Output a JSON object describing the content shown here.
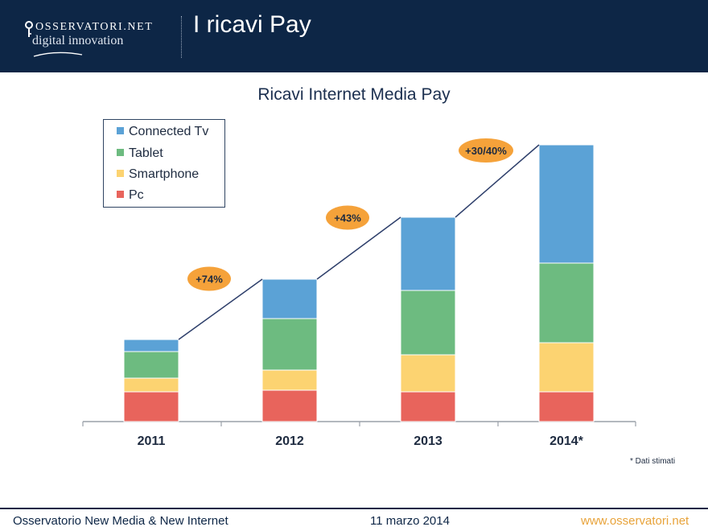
{
  "header": {
    "logo_top": "OSSERVATORI.NET",
    "logo_bottom": "digital innovation",
    "title": "I ricavi Pay"
  },
  "chart_data": {
    "type": "bar",
    "stacked": true,
    "title": "Ricavi Internet Media Pay",
    "categories": [
      "2011",
      "2012",
      "2013",
      "2014*"
    ],
    "series": [
      {
        "name": "Pc",
        "color": "#e8645c",
        "values": [
          37,
          39,
          37,
          37
        ]
      },
      {
        "name": "Smartphone",
        "color": "#fcd371",
        "values": [
          17,
          25,
          46,
          61
        ]
      },
      {
        "name": "Tablet",
        "color": "#6dbb80",
        "values": [
          33,
          64,
          80,
          99
        ]
      },
      {
        "name": "Connected Tv",
        "color": "#5ba2d6",
        "values": [
          15,
          49,
          91,
          147
        ]
      }
    ],
    "legend_order": [
      "Connected Tv",
      "Tablet",
      "Smartphone",
      "Pc"
    ],
    "legend_position": "top-left",
    "growth_labels": [
      "+74%",
      "+43%",
      "+30/40%"
    ],
    "growth_label_color": "#f5a23a",
    "trend_line_color": "#2e3f6b",
    "y_axis_visible": false,
    "ylim": [
      0,
      360
    ],
    "grid": false,
    "footnote": "* Dati stimati"
  },
  "footer": {
    "left": "Osservatorio New Media & New Internet",
    "center": "11 marzo 2014",
    "right": "www.osservatori.net"
  },
  "colors": {
    "header_bg": "#0d2646",
    "footer_right": "#e8a33a"
  }
}
